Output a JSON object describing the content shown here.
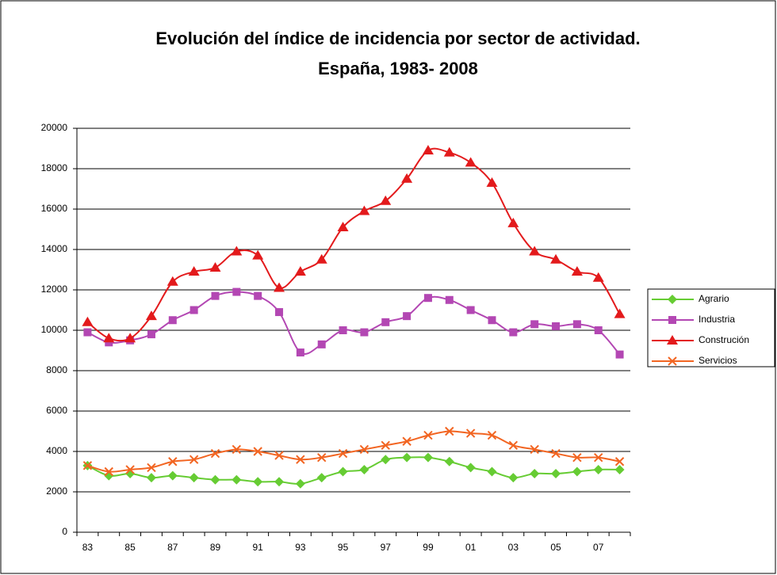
{
  "chart_data": {
    "type": "line",
    "title": "Evolución del índice de incidencia por sector de actividad.",
    "subtitle": "España, 1983- 2008",
    "categories": [
      "83",
      null,
      "85",
      null,
      "87",
      null,
      "89",
      null,
      "91",
      null,
      "93",
      null,
      "95",
      null,
      "97",
      null,
      "99",
      null,
      "01",
      null,
      "03",
      null,
      "05",
      null,
      "07",
      null
    ],
    "series": [
      {
        "name": "Agrario",
        "color": "#66cc33",
        "marker": "diamond",
        "values": [
          3300,
          2800,
          2900,
          2700,
          2800,
          2700,
          2600,
          2600,
          2500,
          2500,
          2400,
          2700,
          3000,
          3100,
          3600,
          3700,
          3700,
          3500,
          3200,
          3000,
          2700,
          2900,
          2900,
          3000,
          3100,
          3100
        ]
      },
      {
        "name": "Industria",
        "color": "#b347b3",
        "marker": "square",
        "values": [
          9900,
          9400,
          9500,
          9800,
          10500,
          11000,
          11700,
          11900,
          11700,
          10900,
          8900,
          9300,
          10000,
          9900,
          10400,
          10700,
          11600,
          11500,
          11000,
          10500,
          9900,
          10300,
          10200,
          10300,
          10000,
          8800
        ]
      },
      {
        "name": "Construción",
        "color": "#e31a1c",
        "marker": "triangle",
        "values": [
          10400,
          9600,
          9600,
          10700,
          12400,
          12900,
          13100,
          13900,
          13700,
          12100,
          12900,
          13500,
          15100,
          15900,
          16400,
          17500,
          18900,
          18800,
          18300,
          17300,
          15300,
          13900,
          13500,
          12900,
          12600,
          10800
        ]
      },
      {
        "name": "Servicios",
        "color": "#f26522",
        "marker": "x",
        "values": [
          3300,
          3000,
          3100,
          3200,
          3500,
          3600,
          3900,
          4100,
          4000,
          3800,
          3600,
          3700,
          3900,
          4100,
          4300,
          4500,
          4800,
          5000,
          4900,
          4800,
          4300,
          4100,
          3900,
          3700,
          3700,
          3500
        ]
      }
    ],
    "ylim": [
      0,
      20000
    ],
    "yticks": [
      0,
      2000,
      4000,
      6000,
      8000,
      10000,
      12000,
      14000,
      16000,
      18000,
      20000
    ],
    "grid": true,
    "legend": "right"
  }
}
